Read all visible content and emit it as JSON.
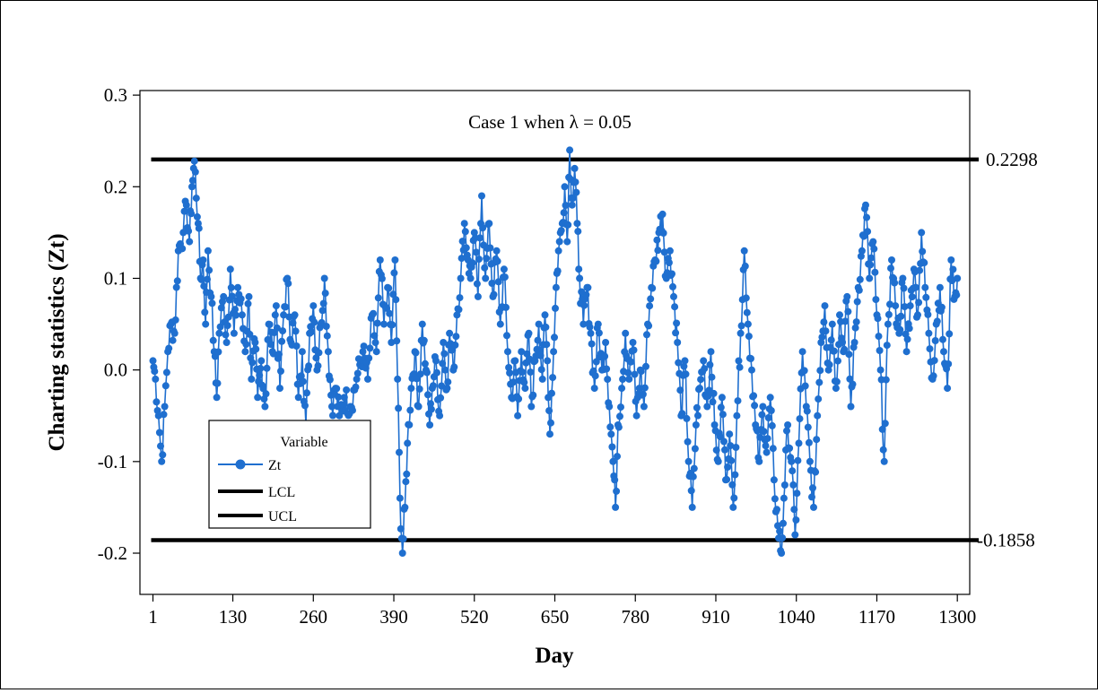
{
  "chart_data": {
    "type": "line",
    "title": "Case 1 when λ = 0.05",
    "xlabel": "Day",
    "ylabel": "Charting statistics (Zt)",
    "xlim": [
      -20,
      1320
    ],
    "ylim": [
      -0.245,
      0.305
    ],
    "x_ticks": [
      1,
      130,
      260,
      390,
      520,
      650,
      780,
      910,
      1040,
      1170,
      1300
    ],
    "x_tick_labels": [
      "1",
      "130",
      "260",
      "390",
      "520",
      "650",
      "780",
      "910",
      "1040",
      "1170",
      "1300"
    ],
    "y_ticks": [
      -0.2,
      -0.1,
      0.0,
      0.1,
      0.2,
      0.3
    ],
    "y_tick_labels": [
      "-0.2",
      "-0.1",
      "0.0",
      "0.1",
      "0.2",
      "0.3"
    ],
    "grid": false,
    "legend": {
      "title": "Variable",
      "placement": "bottom-left",
      "entries": [
        "Zt",
        "LCL",
        "UCL"
      ]
    },
    "colors": {
      "Zt": "#1f6fcf",
      "limits": "#000000"
    },
    "control_limits": {
      "UCL": {
        "value": 0.2298,
        "label": "0.2298"
      },
      "LCL": {
        "value": -0.1858,
        "label": "-0.1858"
      }
    },
    "series": [
      {
        "name": "Zt",
        "anchors": [
          [
            1,
            0.01
          ],
          [
            5,
            -0.01
          ],
          [
            10,
            -0.05
          ],
          [
            15,
            -0.1
          ],
          [
            20,
            -0.04
          ],
          [
            25,
            0.02
          ],
          [
            30,
            0.05
          ],
          [
            36,
            0.04
          ],
          [
            42,
            0.13
          ],
          [
            50,
            0.15
          ],
          [
            55,
            0.18
          ],
          [
            60,
            0.14
          ],
          [
            64,
            0.2
          ],
          [
            68,
            0.228
          ],
          [
            74,
            0.16
          ],
          [
            78,
            0.1
          ],
          [
            82,
            0.12
          ],
          [
            86,
            0.05
          ],
          [
            90,
            0.13
          ],
          [
            95,
            0.08
          ],
          [
            100,
            0.02
          ],
          [
            104,
            -0.03
          ],
          [
            108,
            0.04
          ],
          [
            115,
            0.08
          ],
          [
            120,
            0.03
          ],
          [
            126,
            0.11
          ],
          [
            132,
            0.04
          ],
          [
            138,
            0.09
          ],
          [
            145,
            0.06
          ],
          [
            150,
            0.02
          ],
          [
            156,
            0.08
          ],
          [
            160,
            -0.01
          ],
          [
            166,
            0.03
          ],
          [
            170,
            -0.03
          ],
          [
            176,
            0.01
          ],
          [
            182,
            -0.04
          ],
          [
            188,
            0.05
          ],
          [
            194,
            0.02
          ],
          [
            200,
            0.07
          ],
          [
            206,
            -0.02
          ],
          [
            212,
            0.06
          ],
          [
            218,
            0.1
          ],
          [
            224,
            0.03
          ],
          [
            230,
            0.06
          ],
          [
            236,
            -0.03
          ],
          [
            242,
            0.02
          ],
          [
            248,
            -0.06
          ],
          [
            254,
            0.04
          ],
          [
            260,
            0.07
          ],
          [
            266,
            0.0
          ],
          [
            272,
            0.05
          ],
          [
            278,
            0.1
          ],
          [
            284,
            0.02
          ],
          [
            290,
            -0.04
          ],
          [
            296,
            -0.02
          ],
          [
            302,
            -0.05
          ],
          [
            310,
            -0.03
          ],
          [
            320,
            -0.04
          ],
          [
            330,
            -0.01
          ],
          [
            340,
            0.02
          ],
          [
            348,
            -0.01
          ],
          [
            355,
            0.06
          ],
          [
            362,
            0.02
          ],
          [
            368,
            0.12
          ],
          [
            374,
            0.05
          ],
          [
            380,
            0.09
          ],
          [
            386,
            0.03
          ],
          [
            392,
            0.12
          ],
          [
            396,
            -0.01
          ],
          [
            400,
            -0.14
          ],
          [
            404,
            -0.2
          ],
          [
            408,
            -0.15
          ],
          [
            412,
            -0.08
          ],
          [
            418,
            -0.02
          ],
          [
            424,
            0.02
          ],
          [
            430,
            -0.04
          ],
          [
            436,
            0.05
          ],
          [
            442,
            0.0
          ],
          [
            448,
            -0.06
          ],
          [
            452,
            -0.02
          ],
          [
            458,
            0.01
          ],
          [
            464,
            -0.05
          ],
          [
            470,
            0.03
          ],
          [
            476,
            -0.02
          ],
          [
            480,
            0.04
          ],
          [
            486,
            0.0
          ],
          [
            492,
            0.06
          ],
          [
            498,
            0.1
          ],
          [
            504,
            0.16
          ],
          [
            510,
            0.12
          ],
          [
            514,
            0.1
          ],
          [
            520,
            0.15
          ],
          [
            526,
            0.08
          ],
          [
            532,
            0.19
          ],
          [
            538,
            0.1
          ],
          [
            544,
            0.16
          ],
          [
            550,
            0.08
          ],
          [
            556,
            0.13
          ],
          [
            562,
            0.05
          ],
          [
            568,
            0.11
          ],
          [
            574,
            0.02
          ],
          [
            580,
            -0.03
          ],
          [
            586,
            0.01
          ],
          [
            590,
            -0.05
          ],
          [
            596,
            0.02
          ],
          [
            602,
            -0.02
          ],
          [
            608,
            0.04
          ],
          [
            612,
            -0.04
          ],
          [
            618,
            0.01
          ],
          [
            624,
            0.05
          ],
          [
            630,
            -0.01
          ],
          [
            634,
            0.06
          ],
          [
            638,
            0.01
          ],
          [
            642,
            -0.07
          ],
          [
            648,
            0.02
          ],
          [
            652,
            0.09
          ],
          [
            656,
            0.13
          ],
          [
            662,
            0.16
          ],
          [
            666,
            0.2
          ],
          [
            670,
            0.14
          ],
          [
            674,
            0.24
          ],
          [
            678,
            0.18
          ],
          [
            682,
            0.22
          ],
          [
            686,
            0.16
          ],
          [
            690,
            0.1
          ],
          [
            696,
            0.05
          ],
          [
            702,
            0.09
          ],
          [
            708,
            0.04
          ],
          [
            714,
            -0.02
          ],
          [
            720,
            0.05
          ],
          [
            726,
            0.0
          ],
          [
            732,
            0.03
          ],
          [
            738,
            -0.04
          ],
          [
            744,
            -0.1
          ],
          [
            748,
            -0.15
          ],
          [
            752,
            -0.06
          ],
          [
            758,
            -0.02
          ],
          [
            764,
            0.04
          ],
          [
            770,
            -0.01
          ],
          [
            776,
            0.03
          ],
          [
            782,
            -0.05
          ],
          [
            788,
            0.0
          ],
          [
            794,
            -0.04
          ],
          [
            800,
            0.05
          ],
          [
            806,
            0.09
          ],
          [
            812,
            0.12
          ],
          [
            818,
            0.15
          ],
          [
            824,
            0.17
          ],
          [
            830,
            0.1
          ],
          [
            836,
            0.13
          ],
          [
            842,
            0.08
          ],
          [
            848,
            0.03
          ],
          [
            854,
            -0.05
          ],
          [
            860,
            0.01
          ],
          [
            866,
            -0.1
          ],
          [
            872,
            -0.15
          ],
          [
            878,
            -0.06
          ],
          [
            884,
            -0.02
          ],
          [
            890,
            0.01
          ],
          [
            896,
            -0.04
          ],
          [
            902,
            0.02
          ],
          [
            908,
            -0.06
          ],
          [
            914,
            -0.1
          ],
          [
            920,
            -0.03
          ],
          [
            926,
            -0.12
          ],
          [
            932,
            -0.07
          ],
          [
            938,
            -0.15
          ],
          [
            944,
            -0.05
          ],
          [
            950,
            0.04
          ],
          [
            956,
            0.13
          ],
          [
            962,
            0.05
          ],
          [
            968,
            0.0
          ],
          [
            974,
            -0.06
          ],
          [
            980,
            -0.1
          ],
          [
            986,
            -0.04
          ],
          [
            992,
            -0.09
          ],
          [
            998,
            -0.03
          ],
          [
            1004,
            -0.12
          ],
          [
            1010,
            -0.17
          ],
          [
            1016,
            -0.2
          ],
          [
            1020,
            -0.14
          ],
          [
            1026,
            -0.06
          ],
          [
            1032,
            -0.1
          ],
          [
            1038,
            -0.18
          ],
          [
            1044,
            -0.08
          ],
          [
            1050,
            0.02
          ],
          [
            1056,
            -0.04
          ],
          [
            1062,
            -0.1
          ],
          [
            1068,
            -0.15
          ],
          [
            1074,
            -0.05
          ],
          [
            1080,
            0.03
          ],
          [
            1086,
            0.07
          ],
          [
            1092,
            0.0
          ],
          [
            1098,
            0.05
          ],
          [
            1104,
            -0.02
          ],
          [
            1110,
            0.06
          ],
          [
            1116,
            0.02
          ],
          [
            1122,
            0.08
          ],
          [
            1128,
            -0.04
          ],
          [
            1134,
            0.03
          ],
          [
            1140,
            0.09
          ],
          [
            1146,
            0.13
          ],
          [
            1152,
            0.18
          ],
          [
            1158,
            0.1
          ],
          [
            1164,
            0.14
          ],
          [
            1170,
            0.06
          ],
          [
            1176,
            0.0
          ],
          [
            1182,
            -0.1
          ],
          [
            1188,
            0.05
          ],
          [
            1194,
            0.12
          ],
          [
            1200,
            0.07
          ],
          [
            1206,
            0.04
          ],
          [
            1212,
            0.1
          ],
          [
            1218,
            0.02
          ],
          [
            1224,
            0.07
          ],
          [
            1230,
            0.11
          ],
          [
            1236,
            0.06
          ],
          [
            1242,
            0.15
          ],
          [
            1248,
            0.09
          ],
          [
            1254,
            0.04
          ],
          [
            1260,
            -0.01
          ],
          [
            1266,
            0.05
          ],
          [
            1272,
            0.09
          ],
          [
            1278,
            0.02
          ],
          [
            1284,
            -0.02
          ],
          [
            1290,
            0.12
          ],
          [
            1296,
            0.08
          ],
          [
            1300,
            0.1
          ]
        ]
      }
    ]
  }
}
